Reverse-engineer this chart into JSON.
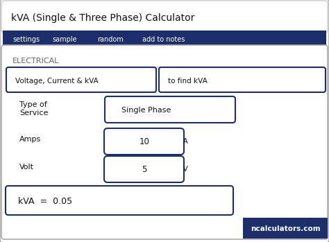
{
  "title": "kVA (Single & Three Phase) Calculator",
  "nav_items": [
    "settings",
    "sample",
    "random",
    "add to notes"
  ],
  "nav_bg": "#1c2e6b",
  "nav_text_color": "#ffffff",
  "section_label": "ELECTRICAL",
  "btn1_text": "Voltage, Current & kVA",
  "btn2_text": "to find kVA",
  "btn_border": "#1c2e6b",
  "label_type_line1": "Type of",
  "label_type_line2": "Service",
  "value_type": "Single Phase",
  "label_amps": "Amps",
  "value_amps": "10",
  "unit_amps": "A",
  "label_volt": "Volt",
  "value_volt": "5",
  "unit_volt": "V",
  "result_text": "kVA  =  0.05",
  "watermark": "ncalculators.com",
  "watermark_bg": "#1c2e6b",
  "bg_color": "#ffffff",
  "outer_bg": "#1a1a2e",
  "section_text_color": "#666666",
  "body_text_color": "#111111"
}
